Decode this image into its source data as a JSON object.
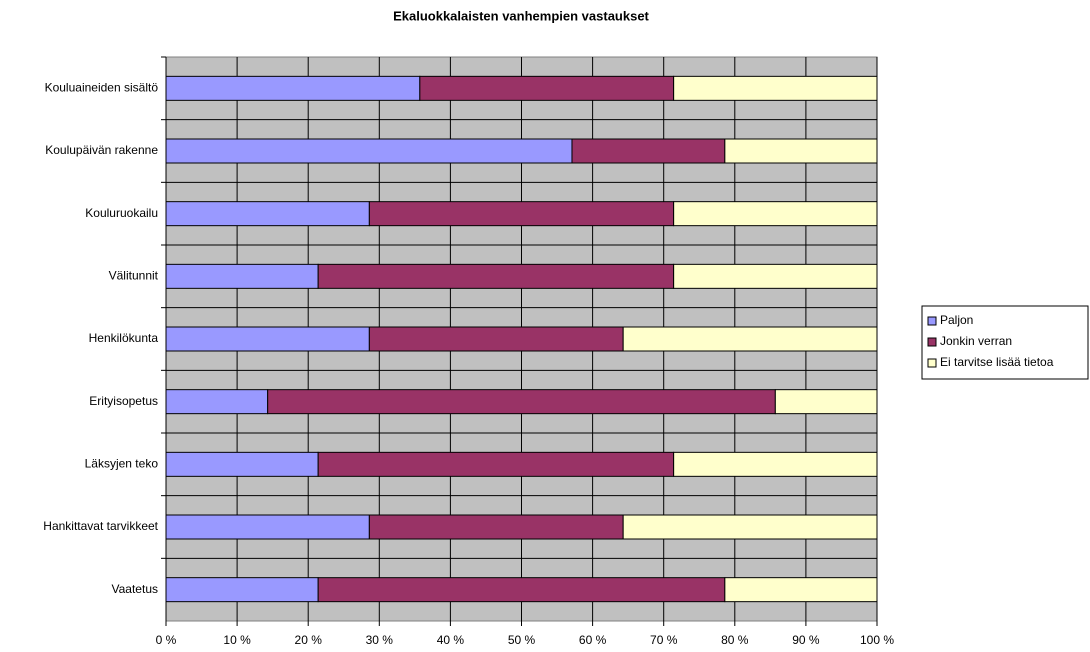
{
  "chart_data": {
    "type": "stacked_barh",
    "title": "Ekaluokkalaisten vanhempien vastaukset",
    "categories": [
      "Kouluaineiden sisältö",
      "Koulupäivän rakenne",
      "Kouluruokailu",
      "Välitunnit",
      "Henkilökunta",
      "Erityisopetus",
      "Läksyjen teko",
      "Hankittavat tarvikkeet",
      "Vaatetus"
    ],
    "series": [
      {
        "name": "Paljon",
        "color": "#9999ff",
        "values": [
          35.7,
          57.1,
          28.6,
          21.4,
          28.6,
          14.3,
          21.4,
          28.6,
          21.4
        ]
      },
      {
        "name": "Jonkin verran",
        "color": "#993366",
        "values": [
          35.7,
          21.5,
          42.8,
          50,
          35.7,
          71.4,
          50,
          35.7,
          57.2
        ]
      },
      {
        "name": "Ei tarvitse lisää tietoa",
        "color": "#ffffcc",
        "values": [
          28.6,
          21.4,
          28.6,
          28.6,
          35.7,
          14.3,
          28.6,
          35.7,
          21.4
        ]
      }
    ],
    "xlim": [
      0,
      100
    ],
    "xticks": [
      {
        "value": 0,
        "label": "0 %"
      },
      {
        "value": 10,
        "label": "10 %"
      },
      {
        "value": 20,
        "label": "20 %"
      },
      {
        "value": 30,
        "label": "30 %"
      },
      {
        "value": 40,
        "label": "40 %"
      },
      {
        "value": 50,
        "label": "50 %"
      },
      {
        "value": 60,
        "label": "60 %"
      },
      {
        "value": 70,
        "label": "70 %"
      },
      {
        "value": 80,
        "label": "80 %"
      },
      {
        "value": 90,
        "label": "90 %"
      },
      {
        "value": 100,
        "label": "100 %"
      }
    ],
    "grid": true,
    "legend": "right"
  }
}
